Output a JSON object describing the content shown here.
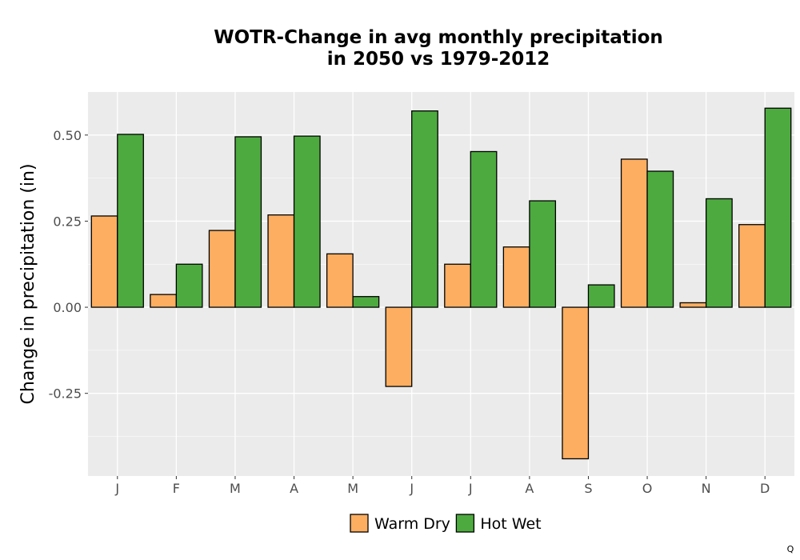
{
  "chart_data": {
    "type": "bar",
    "title": [
      "WOTR-Change in avg monthly precipitation",
      "in 2050 vs 1979-2012"
    ],
    "xlabel": "",
    "ylabel": "Change in precipitation (in)",
    "categories": [
      "J",
      "F",
      "M",
      "A",
      "M",
      "J",
      "J",
      "A",
      "S",
      "O",
      "N",
      "D"
    ],
    "series": [
      {
        "name": "Warm Dry",
        "color": "#FDAE61",
        "values": [
          0.265,
          0.037,
          0.223,
          0.268,
          0.155,
          -0.23,
          0.125,
          0.175,
          -0.44,
          0.43,
          0.013,
          0.24
        ]
      },
      {
        "name": "Hot Wet",
        "color": "#4DAA3F",
        "values": [
          0.502,
          0.125,
          0.495,
          0.497,
          0.031,
          0.57,
          0.452,
          0.309,
          0.065,
          0.395,
          0.315,
          0.578
        ]
      }
    ],
    "ylim": [
      -0.49,
      0.625
    ],
    "yticks": [
      -0.25,
      0.0,
      0.25,
      0.5
    ],
    "ytick_labels": [
      "-0.25",
      "0.00",
      "0.25",
      "0.50"
    ],
    "grid": true,
    "legend_position": "bottom"
  },
  "corner_mark": "Q"
}
